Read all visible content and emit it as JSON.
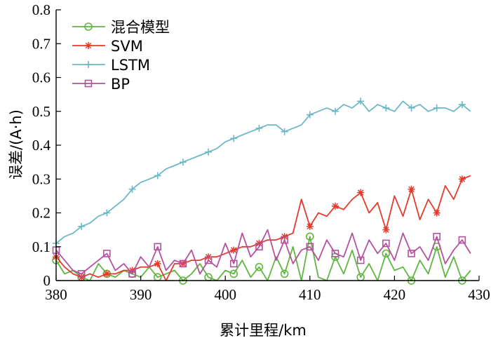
{
  "chart_data": {
    "type": "line",
    "xlabel": "累计里程/km",
    "ylabel": "误差/(A·h)",
    "xlim": [
      380,
      430
    ],
    "ylim": [
      0,
      0.8
    ],
    "xticks": [
      380,
      390,
      400,
      410,
      420,
      430
    ],
    "yticks": [
      0,
      0.1,
      0.2,
      0.3,
      0.4,
      0.5,
      0.6,
      0.7,
      0.8
    ],
    "grid": false,
    "legend_position": "top-left",
    "x": [
      380,
      381,
      382,
      383,
      384,
      385,
      386,
      387,
      388,
      389,
      390,
      391,
      392,
      393,
      394,
      395,
      396,
      397,
      398,
      399,
      400,
      401,
      402,
      403,
      404,
      405,
      406,
      407,
      408,
      409,
      410,
      411,
      412,
      413,
      414,
      415,
      416,
      417,
      418,
      419,
      420,
      421,
      422,
      423,
      424,
      425,
      426,
      427,
      428,
      429
    ],
    "series": [
      {
        "name": "混合模型",
        "color": "#5fb640",
        "marker": "circle",
        "values": [
          0.06,
          0.02,
          0.03,
          0.01,
          0.0,
          0.05,
          0.02,
          0.01,
          0.03,
          0.02,
          0.01,
          0.04,
          0.01,
          0.02,
          0.03,
          0.0,
          0.02,
          0.05,
          0.01,
          0.0,
          0.03,
          0.02,
          0.06,
          0.01,
          0.04,
          0.0,
          0.07,
          0.02,
          0.1,
          0.0,
          0.13,
          0.01,
          0.0,
          0.07,
          0.02,
          0.09,
          0.01,
          0.05,
          0.0,
          0.08,
          0.03,
          0.04,
          0.0,
          0.06,
          0.02,
          0.1,
          0.01,
          0.07,
          0.0,
          0.03
        ]
      },
      {
        "name": "SVM",
        "color": "#e53b2c",
        "marker": "star",
        "values": [
          0.07,
          0.04,
          0.02,
          0.01,
          0.02,
          0.01,
          0.02,
          0.02,
          0.03,
          0.03,
          0.04,
          0.04,
          0.05,
          0.0,
          0.05,
          0.05,
          0.06,
          0.06,
          0.07,
          0.07,
          0.08,
          0.09,
          0.1,
          0.1,
          0.11,
          0.12,
          0.12,
          0.13,
          0.14,
          0.24,
          0.16,
          0.2,
          0.19,
          0.22,
          0.21,
          0.24,
          0.26,
          0.2,
          0.23,
          0.15,
          0.25,
          0.19,
          0.27,
          0.18,
          0.24,
          0.2,
          0.28,
          0.24,
          0.3,
          0.31
        ]
      },
      {
        "name": "LSTM",
        "color": "#6bb9c6",
        "marker": "plus",
        "values": [
          0.11,
          0.13,
          0.14,
          0.16,
          0.17,
          0.19,
          0.2,
          0.22,
          0.24,
          0.27,
          0.29,
          0.3,
          0.31,
          0.33,
          0.34,
          0.35,
          0.36,
          0.37,
          0.38,
          0.39,
          0.41,
          0.42,
          0.43,
          0.44,
          0.45,
          0.46,
          0.46,
          0.44,
          0.45,
          0.46,
          0.49,
          0.5,
          0.51,
          0.5,
          0.52,
          0.51,
          0.53,
          0.5,
          0.52,
          0.51,
          0.5,
          0.53,
          0.51,
          0.52,
          0.5,
          0.51,
          0.51,
          0.5,
          0.52,
          0.5
        ]
      },
      {
        "name": "BP",
        "color": "#b5519f",
        "marker": "square",
        "values": [
          0.09,
          0.06,
          0.03,
          0.02,
          0.04,
          0.06,
          0.08,
          0.03,
          0.05,
          0.02,
          0.07,
          0.04,
          0.1,
          0.03,
          0.06,
          0.05,
          0.09,
          0.02,
          0.06,
          0.04,
          0.11,
          0.05,
          0.14,
          0.07,
          0.1,
          0.15,
          0.06,
          0.12,
          0.05,
          0.09,
          0.1,
          0.06,
          0.12,
          0.08,
          0.07,
          0.14,
          0.06,
          0.12,
          0.08,
          0.11,
          0.06,
          0.14,
          0.08,
          0.1,
          0.06,
          0.13,
          0.05,
          0.09,
          0.12,
          0.08
        ]
      }
    ]
  }
}
